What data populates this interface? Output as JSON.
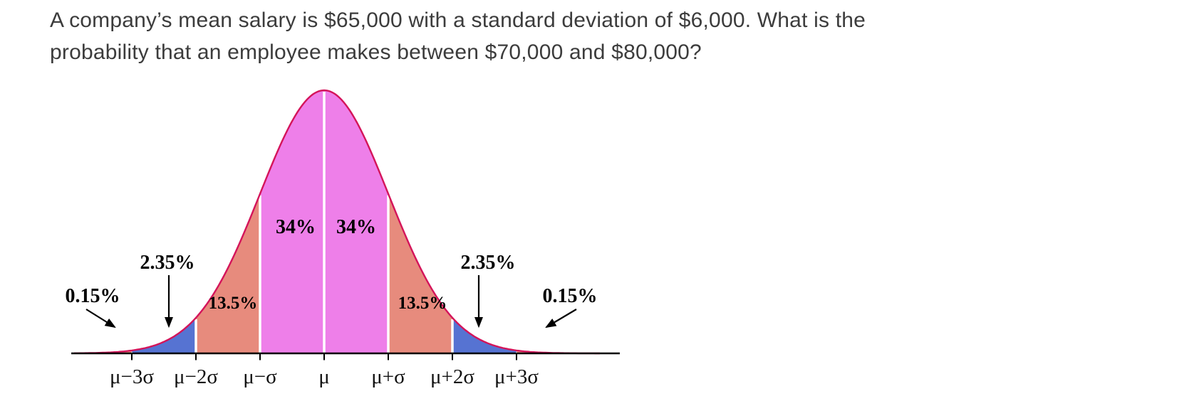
{
  "question": {
    "line1": "A company’s mean salary is $65,000 with a standard deviation of $6,000. What is the",
    "line2": "probability that an employee makes between $70,000 and $80,000?"
  },
  "chart_data": {
    "type": "area",
    "description": "Normal distribution bell curve illustrating the empirical rule percentages",
    "x_tick_labels": [
      "μ−3σ",
      "μ−2σ",
      "μ−σ",
      "μ",
      "μ+σ",
      "μ+2σ",
      "μ+3σ"
    ],
    "regions": [
      {
        "from_sigma": -4,
        "to_sigma": -3,
        "label": "0.15%",
        "percent": 0.15,
        "color": "#e78b7d"
      },
      {
        "from_sigma": -3,
        "to_sigma": -2,
        "label": "2.35%",
        "percent": 2.35,
        "color": "#5673d2"
      },
      {
        "from_sigma": -2,
        "to_sigma": -1,
        "label": "13.5%",
        "percent": 13.5,
        "color": "#e78b7d"
      },
      {
        "from_sigma": -1,
        "to_sigma": 0,
        "label": "34%",
        "percent": 34,
        "color": "#ee7fe9"
      },
      {
        "from_sigma": 0,
        "to_sigma": 1,
        "label": "34%",
        "percent": 34,
        "color": "#ee7fe9"
      },
      {
        "from_sigma": 1,
        "to_sigma": 2,
        "label": "13.5%",
        "percent": 13.5,
        "color": "#e78b7d"
      },
      {
        "from_sigma": 2,
        "to_sigma": 3,
        "label": "2.35%",
        "percent": 2.35,
        "color": "#5673d2"
      },
      {
        "from_sigma": 3,
        "to_sigma": 4,
        "label": "0.15%",
        "percent": 0.15,
        "color": "#e78b7d"
      }
    ],
    "curve_color": "#d4145a",
    "axis_color": "#000000",
    "divider_color": "#ffffff"
  }
}
